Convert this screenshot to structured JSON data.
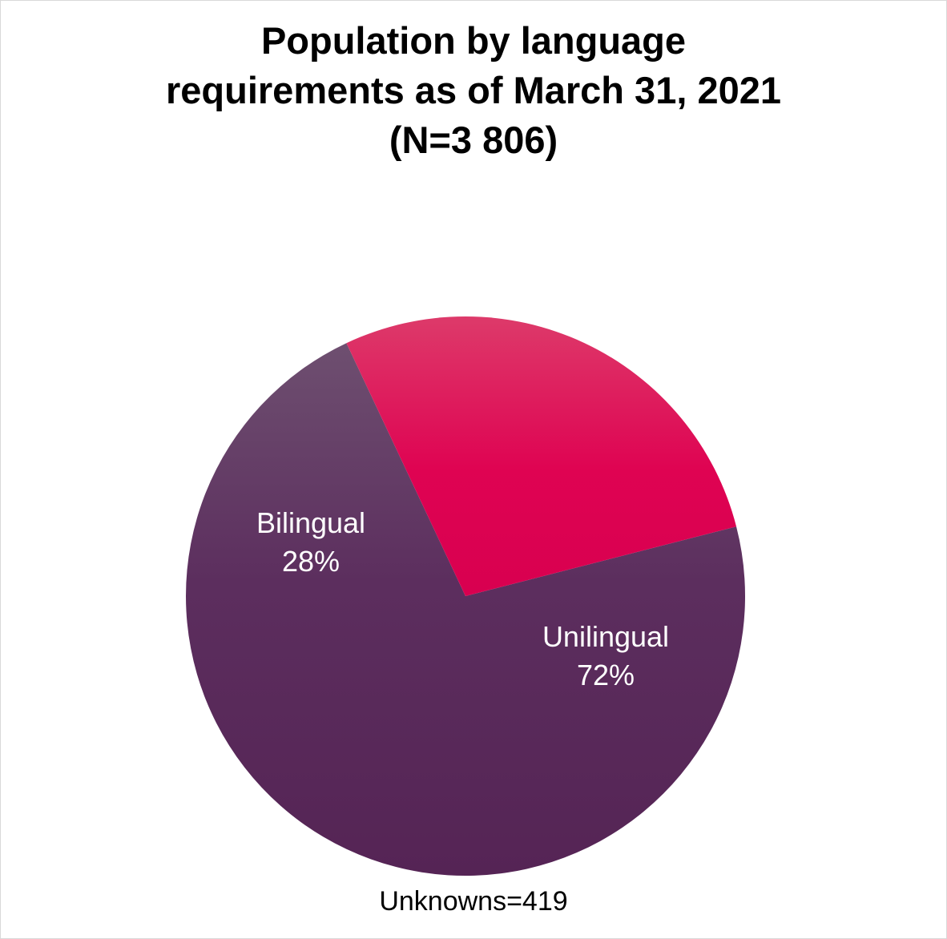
{
  "chart_data": {
    "type": "pie",
    "title": "Population by language requirements as of March 31, 2021 (N=3 806)",
    "title_lines": [
      "Population by language",
      "requirements as of March 31, 2021",
      "(N=3 806)"
    ],
    "slices": [
      {
        "label": "Bilingual",
        "value": 28,
        "value_label": "28%",
        "color": "#dc0a55"
      },
      {
        "label": "Unilingual",
        "value": 72,
        "value_label": "72%",
        "color": "#5e2a5c"
      }
    ],
    "footnote": "Unknowns=419",
    "legend": "none",
    "data_labels": "inside"
  }
}
